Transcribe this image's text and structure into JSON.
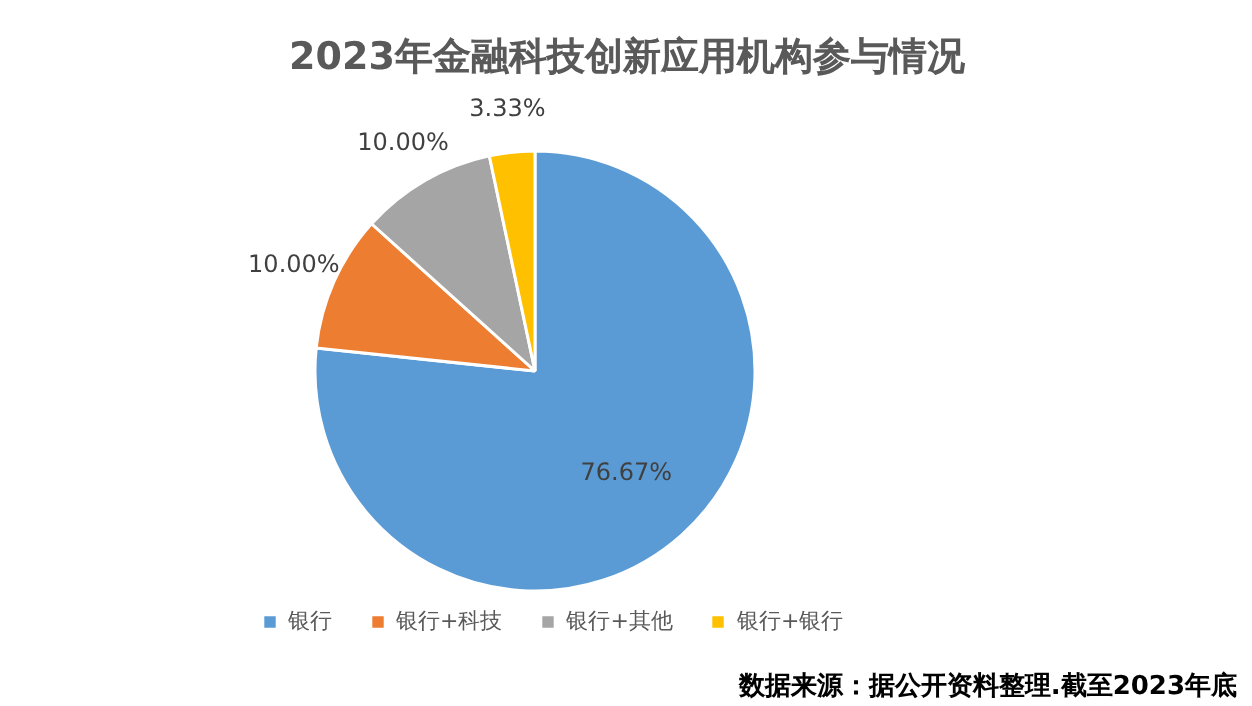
{
  "chart_data": {
    "type": "pie",
    "title": "2023年金融科技创新应用机构参与情况",
    "categories": [
      "银行",
      "银行+科技",
      "银行+其他",
      "银行+银行"
    ],
    "values": [
      76.67,
      10.0,
      10.0,
      3.33
    ],
    "colors": [
      "#5b9bd5",
      "#ed7d31",
      "#a5a5a5",
      "#ffc000"
    ],
    "value_labels": [
      "76.67%",
      "10.00%",
      "10.00%",
      "3.33%"
    ],
    "legend": "bottom",
    "annotations": [
      "数据来源：据公开资料整理.截至2023年底"
    ]
  }
}
